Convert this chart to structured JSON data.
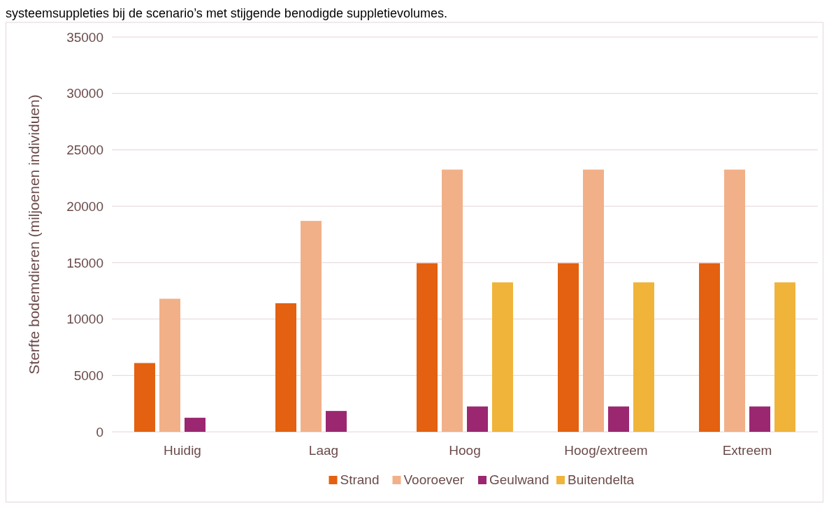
{
  "chart_data": {
    "type": "bar",
    "title": "systeemsuppleties bij de scenario’s met stijgende benodigde suppletievolumes.",
    "ylabel": "Sterfte bodemdieren (miljoenen individuen)",
    "categories": [
      "Huidig",
      "Laag",
      "Hoog",
      "Hoog/extreem",
      "Extreem"
    ],
    "series": [
      {
        "name": "Strand",
        "color": "#e36110",
        "values": [
          6100,
          11400,
          14950,
          14950,
          14950
        ]
      },
      {
        "name": "Vooroever",
        "color": "#f2b088",
        "values": [
          11800,
          18700,
          23250,
          23250,
          23250
        ]
      },
      {
        "name": "Geulwand",
        "color": "#9b2771",
        "values": [
          1250,
          1850,
          2250,
          2250,
          2250
        ]
      },
      {
        "name": "Buitendelta",
        "color": "#f0b43a",
        "values": [
          null,
          null,
          13250,
          13250,
          13250
        ]
      }
    ],
    "ylim": [
      0,
      35000
    ],
    "yticks": [
      0,
      5000,
      10000,
      15000,
      20000,
      25000,
      30000,
      35000
    ],
    "grid": "y",
    "legend": "bottom"
  }
}
